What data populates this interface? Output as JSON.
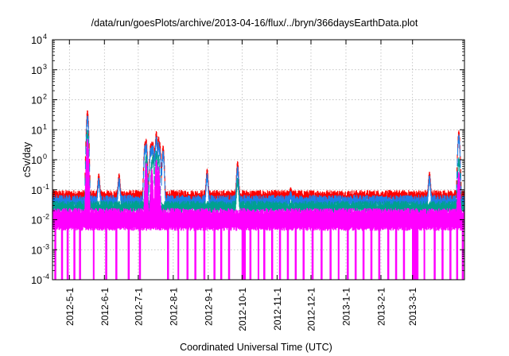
{
  "chart_data": {
    "type": "line",
    "title": "/data/run/goesPlots/archive/2013-04-16/flux/../bryn/366daysEarthData.plot",
    "xlabel": "Coordinated Universal Time (UTC)",
    "ylabel": "cSv/day",
    "yscale": "log",
    "ylim": [
      0.0001,
      10000
    ],
    "y_ticks": [
      {
        "value": 0.0001,
        "base": "10",
        "exp": "-4"
      },
      {
        "value": 0.001,
        "base": "10",
        "exp": "-3"
      },
      {
        "value": 0.01,
        "base": "10",
        "exp": "-2"
      },
      {
        "value": 0.1,
        "base": "10",
        "exp": "-1"
      },
      {
        "value": 1,
        "base": "10",
        "exp": "0"
      },
      {
        "value": 10,
        "base": "10",
        "exp": "1"
      },
      {
        "value": 100,
        "base": "10",
        "exp": "2"
      },
      {
        "value": 1000,
        "base": "10",
        "exp": "3"
      },
      {
        "value": 10000,
        "base": "10",
        "exp": "4"
      }
    ],
    "xlim": [
      "2012-04-16",
      "2013-04-16"
    ],
    "x_ticks": [
      {
        "date": "2012-05-01",
        "label": "2012-5-1"
      },
      {
        "date": "2012-06-01",
        "label": "2012-6-1"
      },
      {
        "date": "2012-07-01",
        "label": "2012-7-1"
      },
      {
        "date": "2012-08-01",
        "label": "2012-8-1"
      },
      {
        "date": "2012-09-01",
        "label": "2012-9-1"
      },
      {
        "date": "2012-10-01",
        "label": "2012-10-1"
      },
      {
        "date": "2012-11-01",
        "label": "2012-11-1"
      },
      {
        "date": "2012-12-01",
        "label": "2012-12-1"
      },
      {
        "date": "2013-01-01",
        "label": "2013-1-1"
      },
      {
        "date": "2013-02-01",
        "label": "2013-2-1"
      },
      {
        "date": "2013-03-01",
        "label": "2013-3-1"
      }
    ],
    "grid": true,
    "series": [
      {
        "color": "#ff0000",
        "baseline": 0.08,
        "peaks": [
          {
            "date": "2012-05-17",
            "value": 45
          },
          {
            "date": "2012-05-27",
            "value": 0.35
          },
          {
            "date": "2012-06-14",
            "value": 0.35
          },
          {
            "date": "2012-07-07",
            "value": 4
          },
          {
            "date": "2012-07-08",
            "value": 5
          },
          {
            "date": "2012-07-12",
            "value": 3.5
          },
          {
            "date": "2012-07-13",
            "value": 4
          },
          {
            "date": "2012-07-14",
            "value": 4
          },
          {
            "date": "2012-07-16",
            "value": 3
          },
          {
            "date": "2012-07-17",
            "value": 9
          },
          {
            "date": "2012-07-19",
            "value": 6
          },
          {
            "date": "2012-07-20",
            "value": 4
          },
          {
            "date": "2012-07-23",
            "value": 3
          },
          {
            "date": "2012-08-31",
            "value": 0.5
          },
          {
            "date": "2012-09-27",
            "value": 0.9
          },
          {
            "date": "2012-11-13",
            "value": 0.12
          },
          {
            "date": "2013-03-16",
            "value": 0.4
          },
          {
            "date": "2013-04-11",
            "value": 9.5
          }
        ]
      },
      {
        "color": "#1f7fe8",
        "baseline": 0.055,
        "peaks": [
          {
            "date": "2012-05-17",
            "value": 30
          },
          {
            "date": "2012-05-27",
            "value": 0.25
          },
          {
            "date": "2012-06-14",
            "value": 0.25
          },
          {
            "date": "2012-07-07",
            "value": 3
          },
          {
            "date": "2012-07-08",
            "value": 3.5
          },
          {
            "date": "2012-07-12",
            "value": 2.5
          },
          {
            "date": "2012-07-13",
            "value": 3
          },
          {
            "date": "2012-07-14",
            "value": 3
          },
          {
            "date": "2012-07-16",
            "value": 2
          },
          {
            "date": "2012-07-17",
            "value": 6
          },
          {
            "date": "2012-07-19",
            "value": 4
          },
          {
            "date": "2012-07-20",
            "value": 2.5
          },
          {
            "date": "2012-07-23",
            "value": 2
          },
          {
            "date": "2012-08-31",
            "value": 0.35
          },
          {
            "date": "2012-09-27",
            "value": 0.6
          },
          {
            "date": "2012-11-13",
            "value": 0.09
          },
          {
            "date": "2013-03-16",
            "value": 0.3
          },
          {
            "date": "2013-04-11",
            "value": 7
          }
        ]
      },
      {
        "color": "#00a090",
        "baseline": 0.035,
        "peaks": [
          {
            "date": "2012-05-17",
            "value": 10
          },
          {
            "date": "2012-07-08",
            "value": 1.5
          },
          {
            "date": "2012-07-13",
            "value": 1
          },
          {
            "date": "2012-07-14",
            "value": 1.5
          },
          {
            "date": "2012-07-17",
            "value": 2
          },
          {
            "date": "2012-07-19",
            "value": 1.5
          },
          {
            "date": "2012-09-27",
            "value": 0.25
          },
          {
            "date": "2013-04-11",
            "value": 1.2
          }
        ]
      },
      {
        "color": "#ff00ff",
        "baseline": 0.02,
        "min": 0.0001,
        "floor": 0.005,
        "peaks": [
          {
            "date": "2012-05-17",
            "value": 5
          },
          {
            "date": "2012-07-08",
            "value": 0.8
          },
          {
            "date": "2012-07-13",
            "value": 0.5
          },
          {
            "date": "2012-07-17",
            "value": 1
          },
          {
            "date": "2012-07-19",
            "value": 0.6
          },
          {
            "date": "2013-04-11",
            "value": 0.4
          }
        ],
        "dropouts": [
          [
            "2012-04-18",
            "2012-04-19"
          ],
          [
            "2012-04-24",
            "2012-04-25"
          ],
          [
            "2012-04-29",
            "2012-04-30"
          ],
          [
            "2012-05-05",
            "2012-05-06"
          ],
          [
            "2012-05-10",
            "2012-05-11"
          ],
          [
            "2012-05-22",
            "2012-05-23"
          ],
          [
            "2012-06-02",
            "2012-06-03"
          ],
          [
            "2012-06-11",
            "2012-06-12"
          ],
          [
            "2012-06-22",
            "2012-06-23"
          ],
          [
            "2012-07-02",
            "2012-07-03"
          ],
          [
            "2012-07-27",
            "2012-07-28"
          ],
          [
            "2012-08-05",
            "2012-08-06"
          ],
          [
            "2012-08-13",
            "2012-08-14"
          ],
          [
            "2012-08-20",
            "2012-08-21"
          ],
          [
            "2012-08-28",
            "2012-08-29"
          ],
          [
            "2012-09-06",
            "2012-09-07"
          ],
          [
            "2012-09-12",
            "2012-09-13"
          ],
          [
            "2012-09-19",
            "2012-09-20"
          ],
          [
            "2012-10-01",
            "2012-10-04"
          ],
          [
            "2012-10-08",
            "2012-10-09"
          ],
          [
            "2012-10-15",
            "2012-10-16"
          ],
          [
            "2012-10-20",
            "2012-10-21"
          ],
          [
            "2012-10-27",
            "2012-10-28"
          ],
          [
            "2012-11-03",
            "2012-11-04"
          ],
          [
            "2012-11-10",
            "2012-11-11"
          ],
          [
            "2012-11-17",
            "2012-11-18"
          ],
          [
            "2012-11-24",
            "2012-11-25"
          ],
          [
            "2012-12-02",
            "2012-12-03"
          ],
          [
            "2012-12-10",
            "2012-12-11"
          ],
          [
            "2012-12-18",
            "2012-12-19"
          ],
          [
            "2012-12-25",
            "2012-12-26"
          ],
          [
            "2013-01-02",
            "2013-01-03"
          ],
          [
            "2013-01-09",
            "2013-01-10"
          ],
          [
            "2013-01-16",
            "2013-01-17"
          ],
          [
            "2013-01-23",
            "2013-01-24"
          ],
          [
            "2013-01-30",
            "2013-01-31"
          ],
          [
            "2013-02-07",
            "2013-02-08"
          ],
          [
            "2013-02-14",
            "2013-02-15"
          ],
          [
            "2013-02-21",
            "2013-02-22"
          ],
          [
            "2013-03-01",
            "2013-03-06"
          ],
          [
            "2013-03-11",
            "2013-03-12"
          ],
          [
            "2013-03-20",
            "2013-03-21"
          ],
          [
            "2013-03-27",
            "2013-03-28"
          ],
          [
            "2013-04-03",
            "2013-04-04"
          ],
          [
            "2013-04-09",
            "2013-04-10"
          ],
          [
            "2013-04-14",
            "2013-04-15"
          ]
        ]
      }
    ]
  }
}
